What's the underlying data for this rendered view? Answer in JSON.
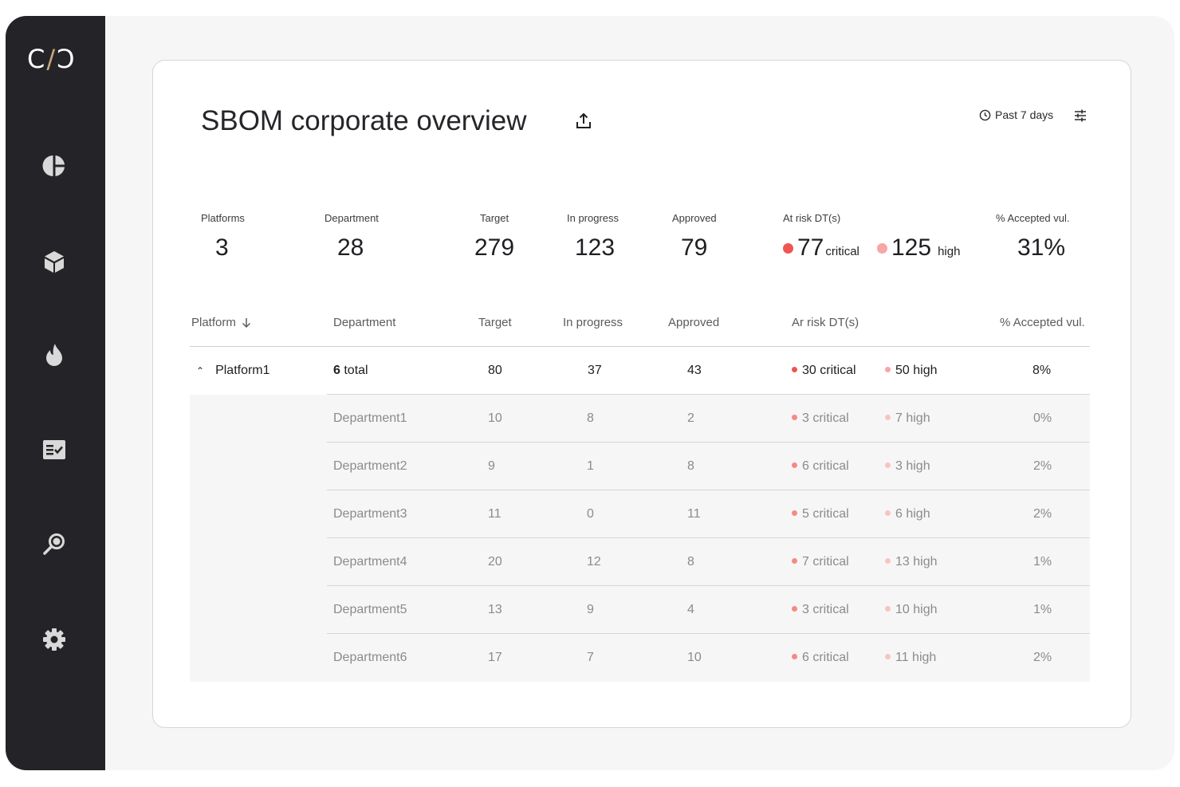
{
  "app": {
    "logo": "C/Ɔ"
  },
  "sidebar": {
    "items": [
      {
        "name": "dashboard",
        "icon": "pie-chart-icon"
      },
      {
        "name": "packages",
        "icon": "cube-icon"
      },
      {
        "name": "vulnerabilities",
        "icon": "flame-icon"
      },
      {
        "name": "tasks",
        "icon": "checklist-icon"
      },
      {
        "name": "search",
        "icon": "magnifier-icon"
      },
      {
        "name": "settings",
        "icon": "gear-icon"
      }
    ]
  },
  "header": {
    "title": "SBOM corporate overview",
    "period": "Past 7 days",
    "share_icon": "share-icon",
    "filter_icon": "sliders-icon",
    "clock_icon": "clock-icon"
  },
  "kpis": {
    "platforms": {
      "label": "Platforms",
      "value": "3"
    },
    "department": {
      "label": "Department",
      "value": "28"
    },
    "target": {
      "label": "Target",
      "value": "279"
    },
    "in_progress": {
      "label": "In progress",
      "value": "123"
    },
    "approved": {
      "label": "Approved",
      "value": "79"
    },
    "at_risk": {
      "label": "At risk DT(s)",
      "critical_value": "77",
      "critical_label": "critical",
      "high_value": "125",
      "high_label": "high"
    },
    "accepted": {
      "label": "% Accepted vul.",
      "value": "31%"
    }
  },
  "table": {
    "columns": {
      "platform": "Platform",
      "department": "Department",
      "target": "Target",
      "in_progress": "In progress",
      "approved": "Approved",
      "at_risk": "Ar risk DT(s)",
      "accepted": "% Accepted vul."
    },
    "platform_row": {
      "platform": "Platform1",
      "dept_count": "6",
      "dept_suffix": "total",
      "target": "80",
      "in_progress": "37",
      "approved": "43",
      "critical": "30 critical",
      "high": "50 high",
      "accepted": "8%"
    },
    "departments": [
      {
        "name": "Department1",
        "target": "10",
        "in_progress": "8",
        "approved": "2",
        "critical": "3 critical",
        "high": "7 high",
        "accepted": "0%"
      },
      {
        "name": "Department2",
        "target": "9",
        "in_progress": "1",
        "approved": "8",
        "critical": "6 critical",
        "high": "3 high",
        "accepted": "2%"
      },
      {
        "name": "Department3",
        "target": "11",
        "in_progress": "0",
        "approved": "11",
        "critical": "5 critical",
        "high": "6 high",
        "accepted": "2%"
      },
      {
        "name": "Department4",
        "target": "20",
        "in_progress": "12",
        "approved": "8",
        "critical": "7 critical",
        "high": "13 high",
        "accepted": "1%"
      },
      {
        "name": "Department5",
        "target": "13",
        "in_progress": "9",
        "approved": "4",
        "critical": "3 critical",
        "high": "10 high",
        "accepted": "1%"
      },
      {
        "name": "Department6",
        "target": "17",
        "in_progress": "7",
        "approved": "10",
        "critical": "6 critical",
        "high": "11 high",
        "accepted": "2%"
      }
    ]
  },
  "colors": {
    "sidebar_bg": "#242428",
    "critical": "#f0554f",
    "high": "#f7a7a3",
    "critical_muted": "#f58a85",
    "high_muted": "#f8c4c1",
    "logo_accent": "#c9a77c"
  }
}
